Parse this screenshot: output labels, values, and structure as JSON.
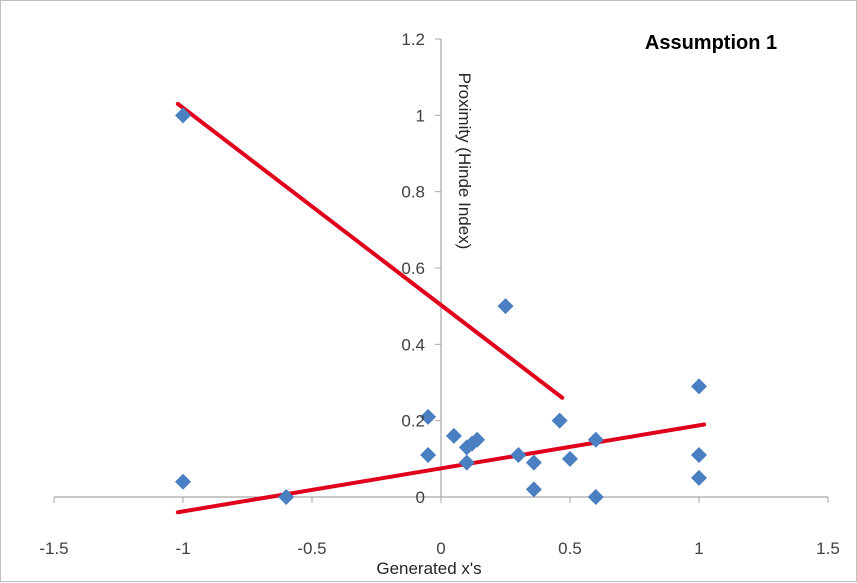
{
  "chart_data": {
    "type": "scatter",
    "title": "Assumption 1",
    "xlabel": "Generated x's",
    "ylabel": "Proximity (Hinde Index)",
    "xlim": [
      -1.5,
      1.5
    ],
    "ylim": [
      0,
      1.2
    ],
    "x_ticks": [
      "-1.5",
      "-1",
      "-0.5",
      "0",
      "0.5",
      "1",
      "1.5"
    ],
    "y_ticks": [
      "0",
      "0.2",
      "0.4",
      "0.6",
      "0.8",
      "1",
      "1.2"
    ],
    "marker_color": "#4a7fc1",
    "trend_color": "#e0001b",
    "points": [
      {
        "x": -1.0,
        "y": 1.0
      },
      {
        "x": -1.0,
        "y": 0.04
      },
      {
        "x": -0.6,
        "y": 0.0
      },
      {
        "x": -0.05,
        "y": 0.21
      },
      {
        "x": -0.05,
        "y": 0.11
      },
      {
        "x": 0.05,
        "y": 0.16
      },
      {
        "x": 0.1,
        "y": 0.13
      },
      {
        "x": 0.1,
        "y": 0.09
      },
      {
        "x": 0.12,
        "y": 0.14
      },
      {
        "x": 0.14,
        "y": 0.15
      },
      {
        "x": 0.25,
        "y": 0.5
      },
      {
        "x": 0.3,
        "y": 0.11
      },
      {
        "x": 0.36,
        "y": 0.09
      },
      {
        "x": 0.36,
        "y": 0.02
      },
      {
        "x": 0.46,
        "y": 0.2
      },
      {
        "x": 0.5,
        "y": 0.1
      },
      {
        "x": 0.6,
        "y": 0.15
      },
      {
        "x": 0.6,
        "y": 0.0
      },
      {
        "x": 1.0,
        "y": 0.29
      },
      {
        "x": 1.0,
        "y": 0.11
      },
      {
        "x": 1.0,
        "y": 0.05
      }
    ],
    "trend_lines": [
      {
        "x": [
          -1.02,
          0.47
        ],
        "y": [
          1.03,
          0.26
        ]
      },
      {
        "x": [
          -1.02,
          1.02
        ],
        "y": [
          -0.04,
          0.19
        ]
      }
    ]
  }
}
